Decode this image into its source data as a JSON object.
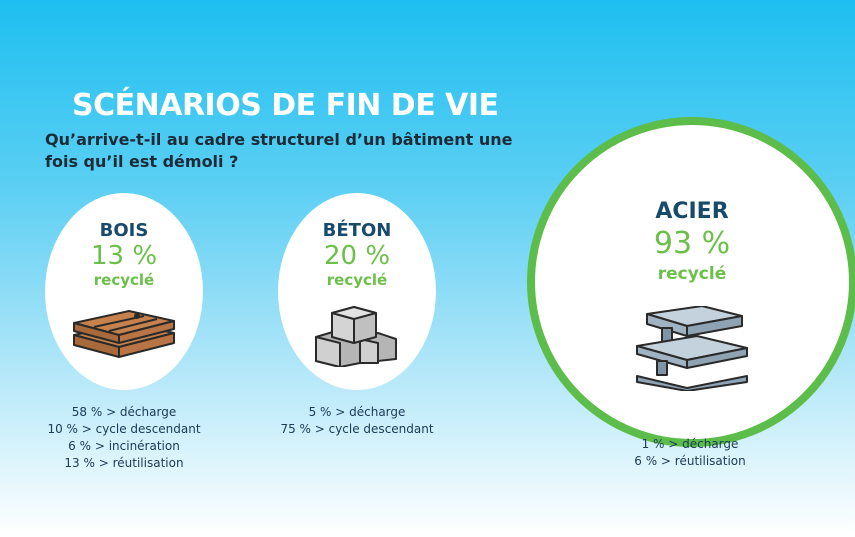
{
  "header": {
    "title": "SCÉNARIOS DE FIN DE VIE",
    "subtitle": "Qu’arrive-t-il au cadre structurel d’un bâtiment une fois qu’il est démoli ?"
  },
  "colors": {
    "accent_green": "#6cc04a",
    "title_blue": "#174a6b",
    "ring_green": "#5dbd4a"
  },
  "materials": [
    {
      "name": "BOIS",
      "percent": "13 %",
      "recycled_label": "recyclé",
      "icon": "wood-planks-icon",
      "breakdown": [
        "58 % > décharge",
        "10 % > cycle descendant",
        "6 % > incinération",
        "13 % > réutilisation"
      ]
    },
    {
      "name": "BÉTON",
      "percent": "20 %",
      "recycled_label": "recyclé",
      "icon": "concrete-blocks-icon",
      "breakdown": [
        "5 % > décharge",
        "75 % > cycle descendant"
      ]
    },
    {
      "name": "ACIER",
      "percent": "93 %",
      "recycled_label": "recyclé",
      "icon": "steel-beams-icon",
      "highlighted": true,
      "breakdown": [
        "1 % > décharge",
        "6 % > réutilisation"
      ]
    }
  ]
}
